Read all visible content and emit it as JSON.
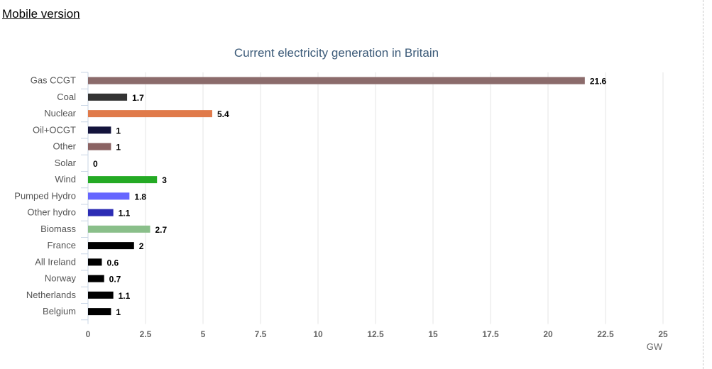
{
  "header": {
    "mobile_link": "Mobile version"
  },
  "chart_data": {
    "type": "bar",
    "orientation": "horizontal",
    "title": "Current electricity generation in Britain",
    "xlabel": "GW",
    "ylabel": "",
    "xlim": [
      0,
      25
    ],
    "xticks": [
      0,
      2.5,
      5,
      7.5,
      10,
      12.5,
      15,
      17.5,
      20,
      22.5,
      25
    ],
    "grid": true,
    "categories": [
      "Gas CCGT",
      "Coal",
      "Nuclear",
      "Oil+OCGT",
      "Other",
      "Solar",
      "Wind",
      "Pumped Hydro",
      "Other hydro",
      "Biomass",
      "France",
      "All Ireland",
      "Norway",
      "Netherlands",
      "Belgium"
    ],
    "values": [
      21.6,
      1.7,
      5.4,
      1,
      1,
      0,
      3,
      1.8,
      1.1,
      2.7,
      2,
      0.6,
      0.7,
      1.1,
      1
    ],
    "colors": [
      "#8b6b6b",
      "#333333",
      "#e07a4a",
      "#14143c",
      "#8b6363",
      "#cfcf30",
      "#24aa24",
      "#6666ff",
      "#2c2cb4",
      "#8abf8a",
      "#000000",
      "#000000",
      "#000000",
      "#000000",
      "#000000"
    ]
  }
}
